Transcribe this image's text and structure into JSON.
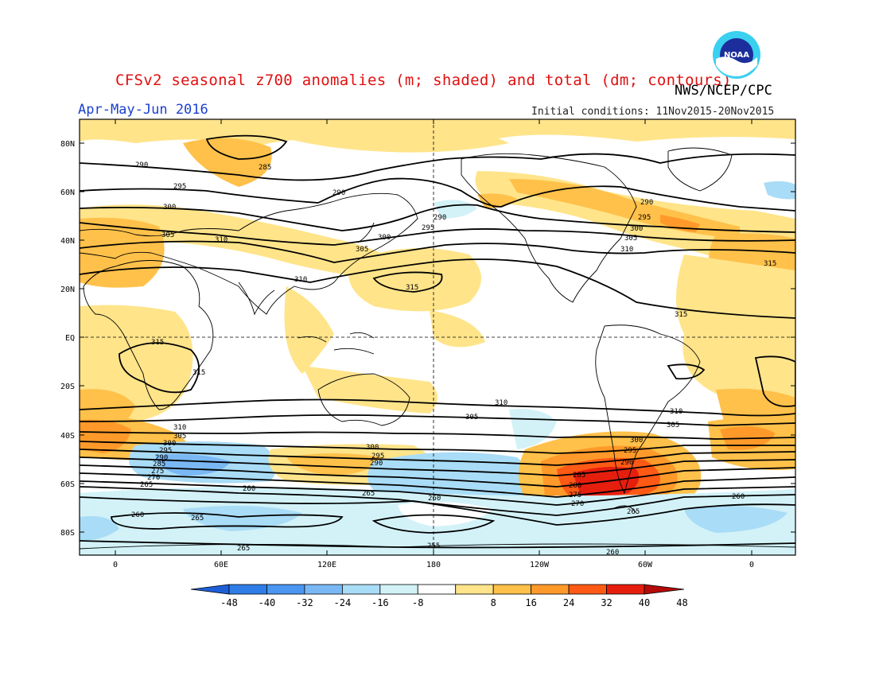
{
  "header": {
    "title": "CFSv2 seasonal z700 anomalies (m; shaded) and total (dm; contours)",
    "agency": "NWS/NCEP/CPC",
    "period": "Apr-May-Jun 2016",
    "initial_conditions": "Initial conditions: 11Nov2015-20Nov2015",
    "logo_text": "NOAA"
  },
  "map": {
    "lat_ticks": [
      "80N",
      "60N",
      "40N",
      "20N",
      "EQ",
      "20S",
      "40S",
      "60S",
      "80S"
    ],
    "lon_ticks": [
      "0",
      "60E",
      "120E",
      "180",
      "120W",
      "60W",
      "0"
    ]
  },
  "contour_labels": {
    "l290": "290",
    "l295": "295",
    "l300": "300",
    "l305": "305",
    "l310": "310",
    "l315": "315",
    "l285": "285",
    "l280": "280",
    "l275": "275",
    "l270": "270",
    "l265": "265",
    "l260": "260",
    "l255": "255"
  },
  "colorbar": {
    "labels": [
      "-48",
      "-40",
      "-32",
      "-24",
      "-16",
      "-8",
      "8",
      "16",
      "24",
      "32",
      "40",
      "48"
    ],
    "colors": [
      "#1e5fd8",
      "#2f7ee8",
      "#4a96f0",
      "#7ab8f5",
      "#a9dcf6",
      "#d2f2f8",
      "#ffffff",
      "#ffe48a",
      "#ffc14a",
      "#ff9a2a",
      "#ff5a15",
      "#e61e0e",
      "#b40a08"
    ]
  }
}
